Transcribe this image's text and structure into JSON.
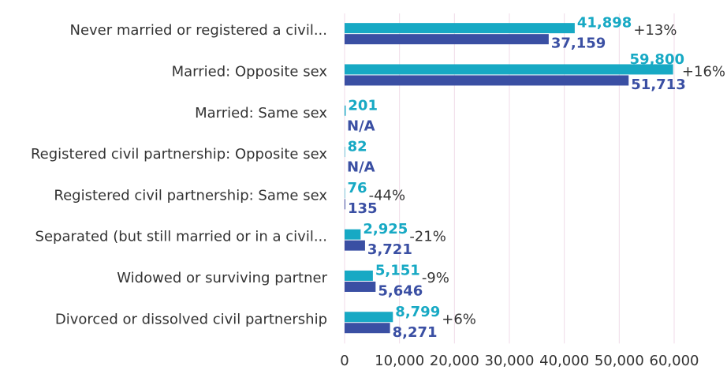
{
  "chart_data": {
    "type": "hbar",
    "categories": [
      "Never married or registered a civil...",
      "Married: Opposite sex",
      "Married: Same sex",
      "Registered civil partnership: Opposite sex",
      "Registered civil partnership: Same sex",
      "Separated (but still  married or in a civil...",
      "Widowed or surviving partner",
      "Divorced or dissolved civil partnership"
    ],
    "series": [
      {
        "color": "#17a9c4",
        "values": [
          41898,
          59800,
          201,
          82,
          76,
          2925,
          5151,
          8799
        ],
        "value_labels": [
          "41,898",
          "59,800",
          "201",
          "82",
          "76",
          "2,925",
          "5,151",
          "8,799"
        ]
      },
      {
        "color": "#3a4fa3",
        "values": [
          37159,
          51713,
          null,
          null,
          135,
          3721,
          5646,
          8271
        ],
        "value_labels": [
          "37,159",
          "51,713",
          "N/A",
          "N/A",
          "135",
          "3,721",
          "5,646",
          "8,271"
        ]
      }
    ],
    "changes": [
      "+13%",
      "+16%",
      null,
      null,
      "-44%",
      "-21%",
      "-9%",
      "+6%"
    ],
    "xlim": [
      0,
      60000
    ],
    "xticks": [
      0,
      {
        "value": 10000,
        "label": "10,000"
      },
      {
        "value": 20000,
        "label": "20,000"
      },
      {
        "value": 30000,
        "label": "30,000"
      },
      {
        "value": 40000,
        "label": "40,000"
      },
      {
        "value": 50000,
        "label": "50,000"
      },
      {
        "value": 60000,
        "label": "60,000"
      }
    ],
    "grid": true
  }
}
